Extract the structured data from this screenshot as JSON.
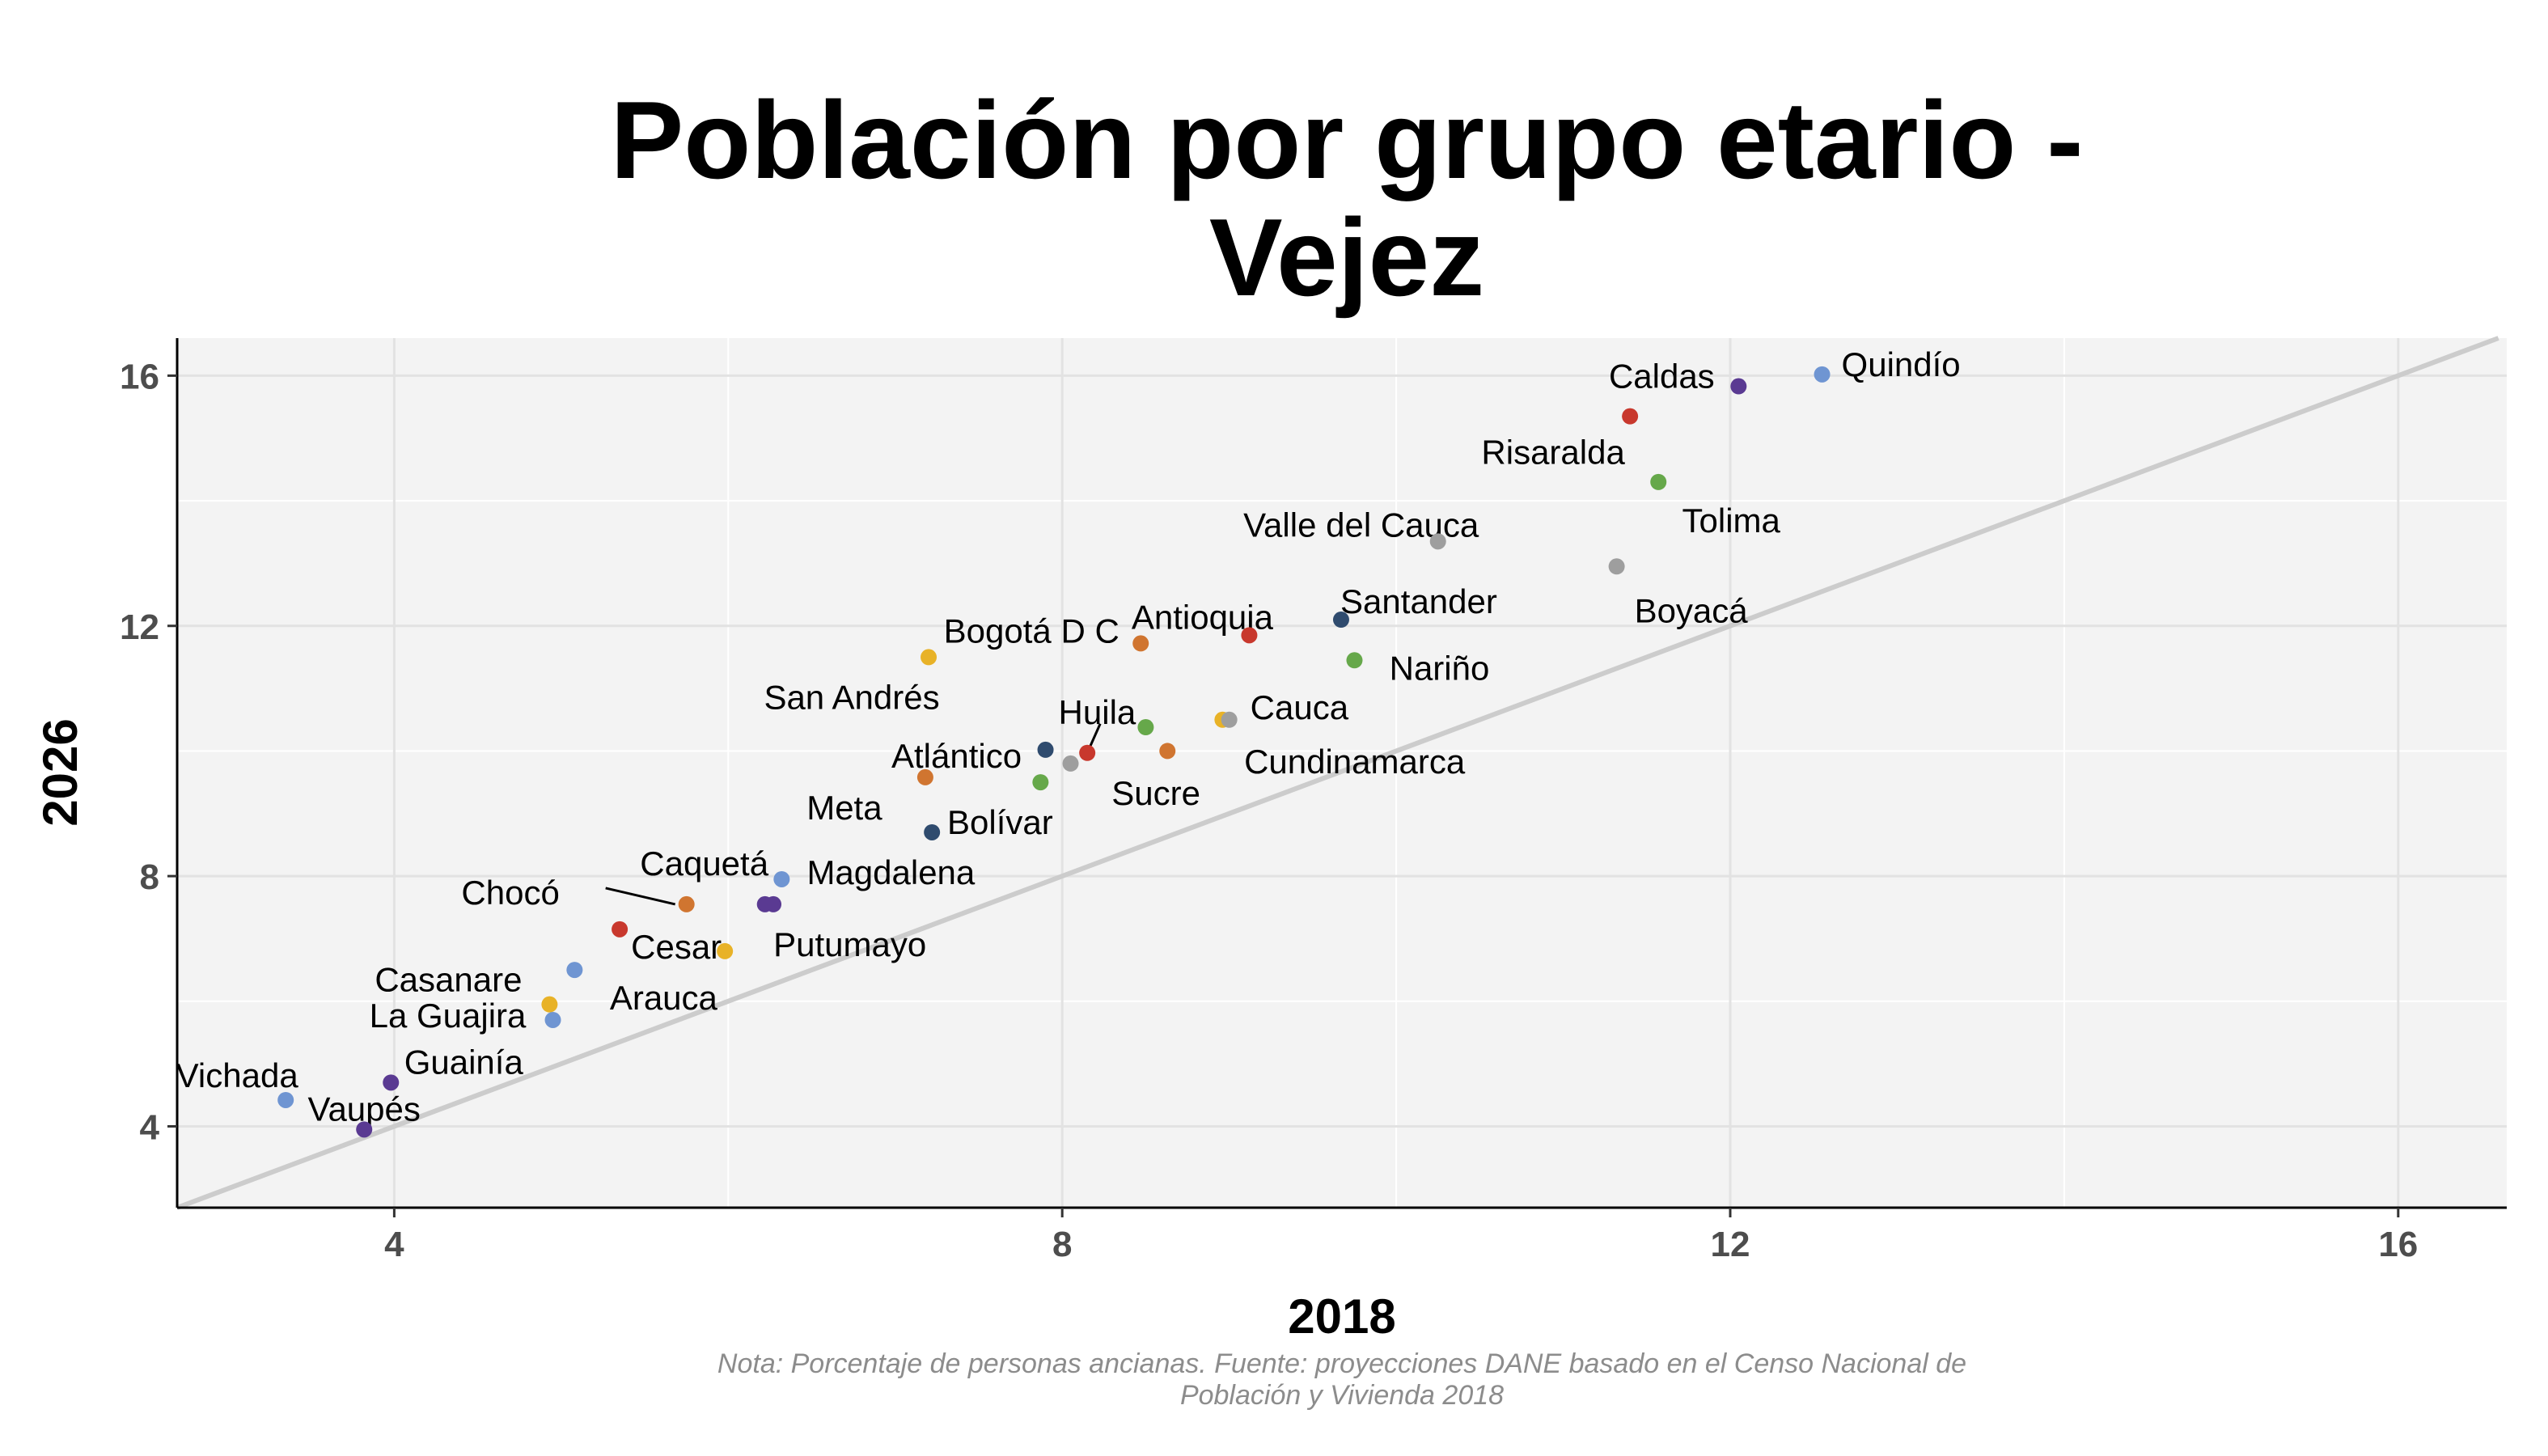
{
  "chart_data": {
    "type": "scatter",
    "title_lines": [
      "Población por grupo etario -",
      "Vejez"
    ],
    "xlabel": "2018",
    "ylabel": "2026",
    "xlim": [
      2.7,
      16.65
    ],
    "ylim": [
      2.7,
      16.6
    ],
    "xticks": [
      4,
      8,
      12,
      16
    ],
    "yticks": [
      4,
      8,
      12,
      16
    ],
    "grid": true,
    "legend": "none",
    "reference_line": "y = x",
    "caption_lines": [
      "Nota: Porcentaje de personas ancianas. Fuente: proyecciones DANE basado en el Censo Nacional de",
      "Población y Vivienda 2018"
    ],
    "points": [
      {
        "label": "Quindío",
        "x": 12.55,
        "y": 16.02,
        "color": "#6f95d2"
      },
      {
        "label": "Caldas",
        "x": 12.05,
        "y": 15.83,
        "color": "#5a3a92"
      },
      {
        "label": "Risaralda",
        "x": 11.4,
        "y": 15.35,
        "color": "#c8382d"
      },
      {
        "label": "Tolima",
        "x": 11.57,
        "y": 14.3,
        "color": "#66a84a"
      },
      {
        "label": "Valle del Cauca",
        "x": 10.25,
        "y": 13.35,
        "color": "#9e9e9e"
      },
      {
        "label": "Boyacá",
        "x": 11.32,
        "y": 12.95,
        "color": "#9e9e9e"
      },
      {
        "label": "Santander",
        "x": 9.67,
        "y": 12.1,
        "color": "#2f4b6e"
      },
      {
        "label": "Antioquia",
        "x": 9.12,
        "y": 11.85,
        "color": "#c8382d"
      },
      {
        "label": "Nariño",
        "x": 9.75,
        "y": 11.45,
        "color": "#66a84a"
      },
      {
        "label": "Bogotá D C",
        "x": 8.47,
        "y": 11.72,
        "color": "#d07530"
      },
      {
        "label": "San Andrés",
        "x": 7.2,
        "y": 11.5,
        "color": "#e8b227"
      },
      {
        "label": "Cauca",
        "x": 8.96,
        "y": 10.5,
        "color": "#e8b227"
      },
      {
        "label": "Cundinamarca",
        "x": 9.0,
        "y": 10.5,
        "color": "#9e9e9e"
      },
      {
        "label": "",
        "x": 8.63,
        "y": 10.0,
        "color": "#d07530"
      },
      {
        "label": "Huila",
        "x": 8.5,
        "y": 10.38,
        "color": "#66a84a"
      },
      {
        "label": "Sucre",
        "x": 8.15,
        "y": 9.97,
        "color": "#c8382d"
      },
      {
        "label": "",
        "x": 8.05,
        "y": 9.8,
        "color": "#9e9e9e"
      },
      {
        "label": "Atlántico",
        "x": 7.9,
        "y": 10.02,
        "color": "#2f4b6e"
      },
      {
        "label": "Bolívar",
        "x": 7.87,
        "y": 9.5,
        "color": "#66a84a"
      },
      {
        "label": "Meta",
        "x": 7.18,
        "y": 9.58,
        "color": "#d07530"
      },
      {
        "label": "",
        "x": 7.22,
        "y": 8.7,
        "color": "#2f4b6e"
      },
      {
        "label": "Magdalena",
        "x": 6.32,
        "y": 7.95,
        "color": "#6f95d2"
      },
      {
        "label": "Caquetá",
        "x": 5.75,
        "y": 7.55,
        "color": "#d07530"
      },
      {
        "label": "Putumayo",
        "x": 6.22,
        "y": 7.55,
        "color": "#5a3a92"
      },
      {
        "label": "",
        "x": 6.27,
        "y": 7.55,
        "color": "#5a3a92"
      },
      {
        "label": "Chocó",
        "x": 5.35,
        "y": 7.15,
        "color": "#c8382d"
      },
      {
        "label": "Cesar",
        "x": 5.98,
        "y": 6.8,
        "color": "#e8b227"
      },
      {
        "label": "Arauca",
        "x": 5.08,
        "y": 6.5,
        "color": "#6f95d2"
      },
      {
        "label": "Casanare",
        "x": 4.93,
        "y": 5.95,
        "color": "#e8b227"
      },
      {
        "label": "La Guajira",
        "x": 4.95,
        "y": 5.7,
        "color": "#6f95d2"
      },
      {
        "label": "Guainía",
        "x": 3.98,
        "y": 4.7,
        "color": "#5a3a92"
      },
      {
        "label": "Vichada",
        "x": 3.35,
        "y": 4.42,
        "color": "#6f95d2"
      },
      {
        "label": "Vaupés",
        "x": 3.82,
        "y": 3.95,
        "color": "#5a3a92"
      }
    ]
  }
}
